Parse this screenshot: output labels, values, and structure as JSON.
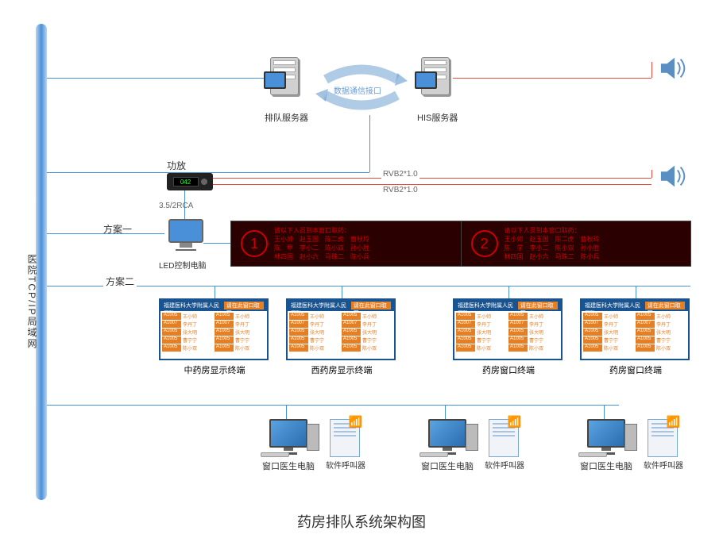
{
  "title": "药房排队系统架构图",
  "backbone_label": "医院TCP/IP局域网",
  "servers": {
    "queue": {
      "label": "排队服务器"
    },
    "his": {
      "label": "HIS服务器"
    },
    "link_label": "数据通信接口"
  },
  "amp": {
    "label": "功放",
    "display": "042"
  },
  "cable_labels": {
    "rvb1": "RVB2*1.0",
    "rvb2": "RVB2*1.0",
    "rca": "3.5/2RCA"
  },
  "schemes": {
    "one": "方案一",
    "two": "方案二"
  },
  "led_pc_label": "LED控制电脑",
  "led_panels": [
    {
      "num": "1",
      "line1": "请以下人员到本窗口取药：",
      "line2": "王小帅　赵玉国　陈二虎　曹秋玲",
      "line3": "陈　甲　李小二　陈小双　孙小胜",
      "line4": "林四国　赵小六　马珠二　陈小兵"
    },
    {
      "num": "2",
      "line1": "请以下人员到本窗口取药：",
      "line2": "王小帅　赵玉国　陈二虎　曹秋玲",
      "line3": "陈　学　李小二　陈小双　孙小胜",
      "line4": "林四国　赵小六　马珠二　陈小兵"
    }
  ],
  "terminals": [
    {
      "label": "中药房显示终端"
    },
    {
      "label": "西药房显示终端"
    },
    {
      "label": "药房窗口终端"
    },
    {
      "label": "药房窗口终端"
    }
  ],
  "terminal_header": {
    "left": "福建医科大学附属人民医院",
    "right": "请在此窗口取药"
  },
  "terminal_rows": [
    {
      "id": "A1005",
      "name": "王小帅"
    },
    {
      "id": "A1007",
      "name": "李丹丁"
    },
    {
      "id": "A1005",
      "name": "张大明"
    },
    {
      "id": "A1005",
      "name": "曹宁宁"
    },
    {
      "id": "A1005",
      "name": "陈小双"
    }
  ],
  "doctor_pcs": [
    {
      "label": "窗口医生电脑"
    },
    {
      "label": "窗口医生电脑"
    },
    {
      "label": "窗口医生电脑"
    }
  ],
  "caller_label": "软件呼叫器",
  "colors": {
    "blue": "#4a90d9",
    "red": "#e74c3c",
    "led_bg": "#2a0000",
    "led_fg": "#c00",
    "term_border": "#1a5490",
    "orange": "#e67e22"
  }
}
